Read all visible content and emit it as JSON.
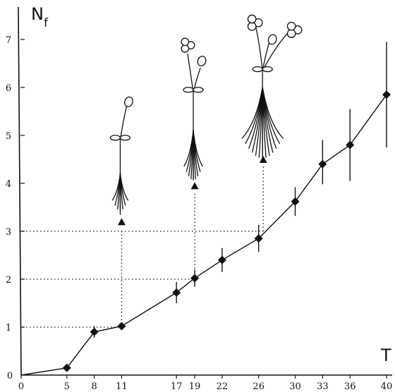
{
  "chart_data": {
    "type": "line",
    "title": "",
    "ylabel": "N",
    "ylabel_subscript": "f",
    "xlabel": "T",
    "xlim": [
      0,
      42
    ],
    "ylim": [
      0,
      7.5
    ],
    "x_ticks": [
      0,
      5,
      8,
      11,
      17,
      19,
      22,
      26,
      30,
      33,
      36,
      40
    ],
    "y_ticks": [
      0,
      1,
      2,
      3,
      4,
      5,
      6,
      7
    ],
    "grid": false,
    "legend": "none",
    "series": [
      {
        "x": [
          0,
          5,
          8,
          11,
          17,
          19,
          22,
          26,
          30,
          33,
          36,
          40
        ],
        "y": [
          0,
          0.15,
          0.9,
          1.02,
          1.72,
          2.02,
          2.4,
          2.85,
          3.62,
          4.4,
          4.8,
          5.85
        ],
        "err_low": [
          0,
          0.08,
          0.12,
          0.05,
          0.22,
          0.18,
          0.25,
          0.28,
          0.3,
          0.42,
          0.75,
          1.1
        ],
        "err_high": [
          0,
          0.08,
          0.12,
          0.05,
          0.22,
          0.18,
          0.25,
          0.28,
          0.3,
          0.5,
          0.75,
          1.1
        ],
        "marker": "diamond"
      }
    ],
    "annotations": [
      {
        "x": 11,
        "y_from": 1.0,
        "y_to": 3.2,
        "level": 1,
        "plant_stage": "first-leaf"
      },
      {
        "x": 19,
        "y_from": 2.0,
        "y_to": 3.95,
        "level": 2,
        "plant_stage": "two-leaves"
      },
      {
        "x": 26.5,
        "y_from": 3.0,
        "y_to": 4.5,
        "level": 3,
        "plant_stage": "multi-leaves"
      }
    ]
  }
}
